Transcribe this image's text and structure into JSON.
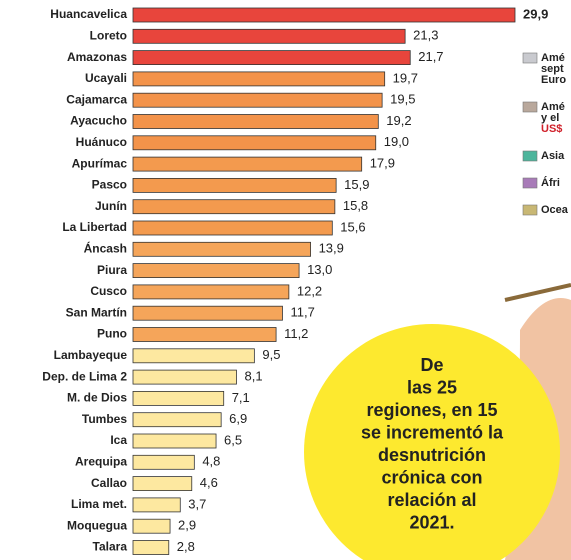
{
  "chart_data": {
    "type": "hbar",
    "categories": [
      "Huancavelica",
      "Loreto",
      "Amazonas",
      "Ucayali",
      "Cajamarca",
      "Ayacucho",
      "Huánuco",
      "Apurímac",
      "Pasco",
      "Junín",
      "La Libertad",
      "Áncash",
      "Piura",
      "Cusco",
      "San Martín",
      "Puno",
      "Lambayeque",
      "Dep. de Lima 2",
      "M. de Dios",
      "Tumbes",
      "Ica",
      "Arequipa",
      "Callao",
      "Lima met.",
      "Moquegua",
      "Talara"
    ],
    "values": [
      29.9,
      21.3,
      21.7,
      19.7,
      19.5,
      19.2,
      19.0,
      17.9,
      15.9,
      15.8,
      15.6,
      13.9,
      13.0,
      12.2,
      11.7,
      11.2,
      9.5,
      8.1,
      7.1,
      6.9,
      6.5,
      4.8,
      4.6,
      3.7,
      2.9,
      2.8
    ],
    "value_labels": [
      "29,9",
      "21,3",
      "21,7",
      "19,7",
      "19,5",
      "19,2",
      "19,0",
      "17,9",
      "15,9",
      "15,8",
      "15,6",
      "13,9",
      "13,0",
      "12,2",
      "11,7",
      "11,2",
      "9,5",
      "8,1",
      "7,1",
      "6,9",
      "6,5",
      "4,8",
      "4,6",
      "3,7",
      "2,9",
      "2,8"
    ],
    "colors": [
      "#e8453c",
      "#e8453c",
      "#e8453c",
      "#f3934a",
      "#f3934a",
      "#f3934a",
      "#f3934a",
      "#f39a4e",
      "#f39a4e",
      "#f39a4e",
      "#f39a4e",
      "#f5a55a",
      "#f5a55a",
      "#f5a55a",
      "#f5a55a",
      "#f5a55a",
      "#fde8a0",
      "#fde8a0",
      "#fde8a0",
      "#fde8a0",
      "#fde8a0",
      "#fde8a0",
      "#fde8a0",
      "#fde8a0",
      "#fde8a0",
      "#fde8a0"
    ]
  },
  "side_legend": [
    {
      "lines": [
        "Amé",
        "sept",
        "Euro"
      ],
      "color": "#c9cacf"
    },
    {
      "lines": [
        "Amé",
        "y el",
        "US$"
      ],
      "color": "#b9a89c"
    },
    {
      "lines": [
        "Asia"
      ],
      "color": "#4db59c"
    },
    {
      "lines": [
        "Áfri"
      ],
      "color": "#a87bb8"
    },
    {
      "lines": [
        "Ocea"
      ],
      "color": "#c8b774"
    }
  ],
  "callout": [
    "De",
    "las 25",
    "regiones, en 15",
    "se incrementó la",
    "desnutrición",
    "crónica con",
    "relación al",
    "2021."
  ]
}
